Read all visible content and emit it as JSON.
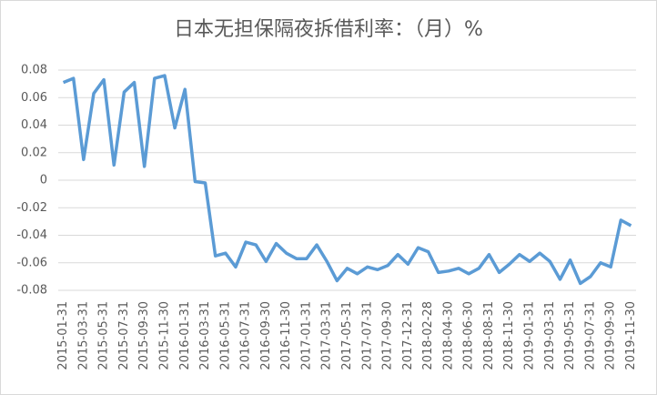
{
  "chart_data": {
    "type": "line",
    "title": "日本无担保隔夜拆借利率：（月）%",
    "categories": [
      "2015-01-31",
      null,
      "2015-03-31",
      null,
      "2015-05-31",
      null,
      "2015-07-31",
      null,
      "2015-09-30",
      null,
      "2015-11-30",
      null,
      "2016-01-31",
      null,
      "2016-03-31",
      null,
      "2016-05-31",
      null,
      "2016-07-31",
      null,
      "2016-09-30",
      null,
      "2016-11-30",
      null,
      "2017-01-31",
      null,
      "2017-03-31",
      null,
      "2017-05-31",
      null,
      "2017-07-31",
      null,
      "2017-09-30",
      null,
      "2017-12-31",
      null,
      "2018-02-28",
      null,
      "2018-04-30",
      null,
      "2018-06-30",
      null,
      "2018-08-31",
      null,
      "2018-11-30",
      null,
      "2019-01-31",
      null,
      "2019-03-31",
      null,
      "2019-05-31",
      null,
      "2019-07-31",
      null,
      "2019-09-30",
      null,
      "2019-11-30"
    ],
    "values": [
      0.071,
      0.074,
      0.015,
      0.063,
      0.073,
      0.011,
      0.064,
      0.071,
      0.01,
      0.074,
      0.076,
      0.038,
      0.066,
      -0.001,
      -0.002,
      -0.055,
      -0.053,
      -0.063,
      -0.045,
      -0.047,
      -0.059,
      -0.046,
      -0.053,
      -0.057,
      -0.057,
      -0.047,
      -0.059,
      -0.073,
      -0.064,
      -0.068,
      -0.063,
      -0.065,
      -0.062,
      -0.054,
      -0.061,
      -0.049,
      -0.052,
      -0.067,
      -0.066,
      -0.064,
      -0.068,
      -0.064,
      -0.054,
      -0.067,
      -0.061,
      -0.054,
      -0.059,
      -0.053,
      -0.059,
      -0.072,
      -0.058,
      -0.075,
      -0.07,
      -0.06,
      -0.063,
      -0.029,
      -0.033
    ],
    "color": "#5b9bd5",
    "ylim": [
      -0.08,
      0.08
    ],
    "yticks": [
      0.08,
      0.06,
      0.04,
      0.02,
      0,
      -0.02,
      -0.04,
      -0.06,
      -0.08
    ],
    "grid": true
  }
}
